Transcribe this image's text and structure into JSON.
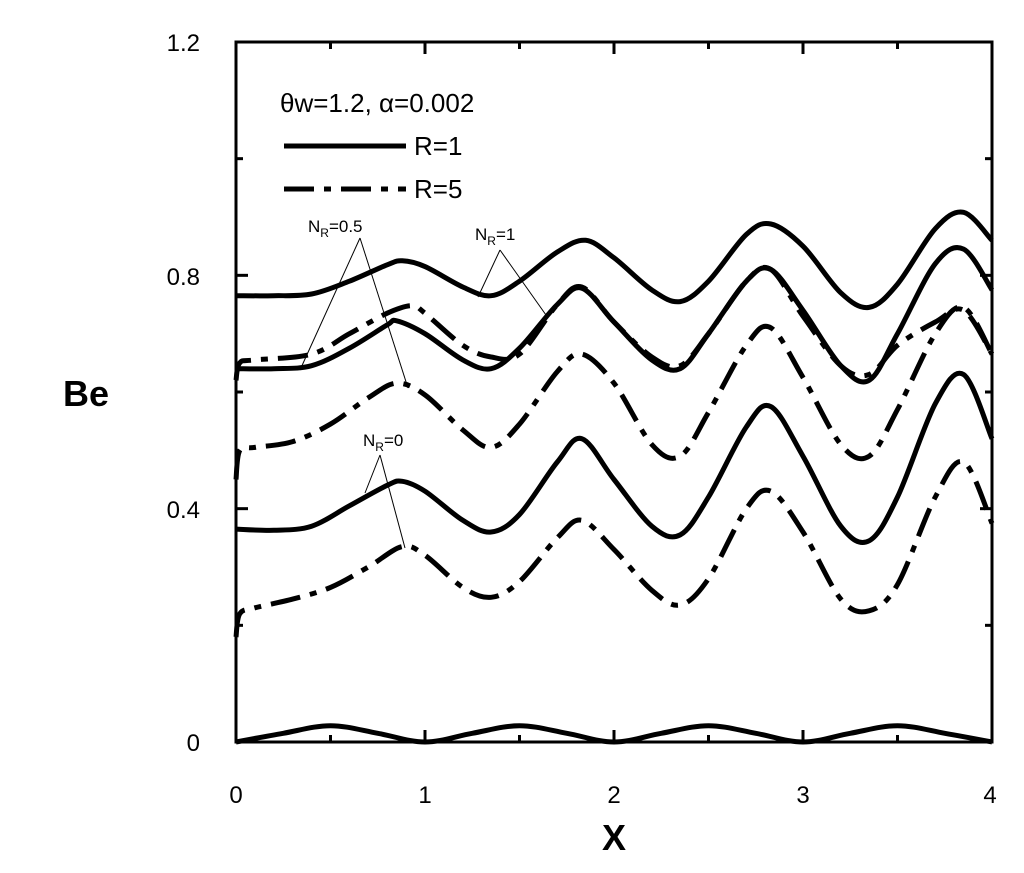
{
  "chart_data": {
    "type": "line",
    "xlabel": "X",
    "ylabel": "Be",
    "xlim": [
      0,
      4
    ],
    "ylim": [
      0,
      1.2
    ],
    "x_ticks": [
      "0",
      "1",
      "2",
      "3",
      "4"
    ],
    "y_ticks": [
      "0",
      "0.4",
      "0.8",
      "1.2"
    ],
    "legend": {
      "header": "θw=1.2, α=0.002",
      "entries": [
        {
          "label": "R=1",
          "style": "solid"
        },
        {
          "label": "R=5",
          "style": "dash-dot"
        }
      ]
    },
    "annotations": [
      {
        "text": "NR=0.5",
        "base": "N",
        "sub": "R",
        "rest": "=0.5"
      },
      {
        "text": "NR=1",
        "base": "N",
        "sub": "R",
        "rest": "=1"
      },
      {
        "text": "NR=0",
        "base": "N",
        "sub": "R",
        "rest": "=0"
      }
    ],
    "series": [
      {
        "style": "solid",
        "x": [
          0,
          0.2,
          0.4,
          0.6,
          0.8,
          0.88,
          1.0,
          1.2,
          1.35,
          1.5,
          1.7,
          1.85,
          2.0,
          2.2,
          2.35,
          2.5,
          2.7,
          2.83,
          3.0,
          3.2,
          3.35,
          3.5,
          3.7,
          3.85,
          4.0
        ],
        "y": [
          0.765,
          0.765,
          0.768,
          0.79,
          0.818,
          0.825,
          0.815,
          0.78,
          0.765,
          0.79,
          0.84,
          0.86,
          0.83,
          0.775,
          0.755,
          0.79,
          0.87,
          0.888,
          0.85,
          0.77,
          0.745,
          0.785,
          0.88,
          0.908,
          0.86
        ]
      },
      {
        "style": "solid",
        "x": [
          0,
          0.2,
          0.4,
          0.6,
          0.8,
          0.85,
          1.0,
          1.2,
          1.35,
          1.5,
          1.7,
          1.83,
          2.0,
          2.2,
          2.35,
          2.5,
          2.7,
          2.83,
          3.0,
          3.2,
          3.35,
          3.5,
          3.7,
          3.85,
          4.0
        ],
        "y": [
          0.64,
          0.64,
          0.645,
          0.675,
          0.715,
          0.722,
          0.7,
          0.655,
          0.64,
          0.675,
          0.75,
          0.778,
          0.72,
          0.655,
          0.64,
          0.7,
          0.79,
          0.81,
          0.74,
          0.645,
          0.62,
          0.7,
          0.82,
          0.845,
          0.775
        ]
      },
      {
        "style": "solid",
        "x": [
          0,
          0.2,
          0.4,
          0.6,
          0.8,
          0.88,
          1.0,
          1.2,
          1.35,
          1.5,
          1.7,
          1.83,
          2.0,
          2.2,
          2.35,
          2.5,
          2.7,
          2.83,
          3.0,
          3.2,
          3.35,
          3.5,
          3.7,
          3.85,
          4.0
        ],
        "y": [
          0.365,
          0.363,
          0.37,
          0.405,
          0.44,
          0.447,
          0.43,
          0.38,
          0.36,
          0.39,
          0.48,
          0.52,
          0.45,
          0.37,
          0.355,
          0.42,
          0.54,
          0.575,
          0.49,
          0.37,
          0.345,
          0.42,
          0.58,
          0.63,
          0.52
        ]
      },
      {
        "style": "solid",
        "x": [
          0,
          0.25,
          0.5,
          0.75,
          1.0,
          1.25,
          1.5,
          1.75,
          2.0,
          2.25,
          2.5,
          2.75,
          3.0,
          3.25,
          3.5,
          3.75,
          4.0
        ],
        "y": [
          0,
          0.015,
          0.028,
          0.015,
          0,
          0.015,
          0.028,
          0.015,
          0,
          0.015,
          0.028,
          0.015,
          0,
          0.015,
          0.028,
          0.015,
          0
        ]
      },
      {
        "style": "dash-dot",
        "x": [
          0,
          0.02,
          0.1,
          0.4,
          0.6,
          0.8,
          0.93,
          1.0,
          1.2,
          1.35,
          1.5,
          1.7,
          1.83,
          2.0,
          2.2,
          2.35,
          2.5,
          2.7,
          2.83,
          3.0,
          3.2,
          3.35,
          3.5,
          3.7,
          3.85,
          4.0
        ],
        "y": [
          0.62,
          0.65,
          0.655,
          0.665,
          0.7,
          0.735,
          0.748,
          0.735,
          0.68,
          0.66,
          0.665,
          0.75,
          0.78,
          0.72,
          0.66,
          0.645,
          0.7,
          0.79,
          0.81,
          0.73,
          0.645,
          0.63,
          0.68,
          0.72,
          0.74,
          0.665
        ]
      },
      {
        "style": "dash-dot",
        "x": [
          0,
          0.02,
          0.1,
          0.3,
          0.5,
          0.7,
          0.85,
          1.0,
          1.2,
          1.35,
          1.5,
          1.7,
          1.83,
          2.0,
          2.2,
          2.35,
          2.5,
          2.7,
          2.83,
          3.0,
          3.2,
          3.35,
          3.5,
          3.7,
          3.85,
          4.0
        ],
        "y": [
          0.45,
          0.5,
          0.505,
          0.515,
          0.545,
          0.59,
          0.615,
          0.595,
          0.535,
          0.505,
          0.545,
          0.635,
          0.665,
          0.615,
          0.51,
          0.49,
          0.565,
          0.68,
          0.71,
          0.625,
          0.51,
          0.49,
          0.57,
          0.7,
          0.745,
          0.665
        ]
      },
      {
        "style": "dash-dot",
        "x": [
          0,
          0.02,
          0.1,
          0.3,
          0.5,
          0.7,
          0.88,
          1.0,
          1.2,
          1.35,
          1.5,
          1.7,
          1.83,
          2.0,
          2.2,
          2.35,
          2.5,
          2.7,
          2.83,
          3.0,
          3.2,
          3.35,
          3.5,
          3.7,
          3.85,
          4.0
        ],
        "y": [
          0.18,
          0.22,
          0.23,
          0.245,
          0.265,
          0.3,
          0.335,
          0.32,
          0.265,
          0.248,
          0.275,
          0.35,
          0.38,
          0.33,
          0.26,
          0.235,
          0.28,
          0.4,
          0.43,
          0.36,
          0.245,
          0.225,
          0.27,
          0.42,
          0.48,
          0.375
        ]
      }
    ]
  }
}
